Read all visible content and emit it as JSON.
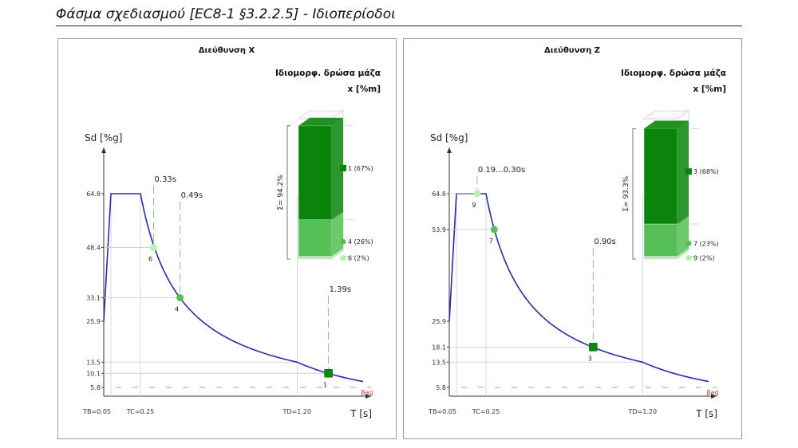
{
  "page_title": "Φάσμα σχεδιασμού [EC8-1 §3.2.2.5] - Ιδιοπερίοδοι",
  "chart_data": [
    {
      "type": "line",
      "title": "Διεύθυνση X",
      "ylabel": "Sd [%g]",
      "xlabel": "T [s]",
      "ytick_labels": [
        "64.8",
        "48.4",
        "33.1",
        "25.9",
        "13.5",
        "10.1",
        "5.8"
      ],
      "xtick_labels": [
        "TB=0.05",
        "TC=0.25",
        "TD=1.20"
      ],
      "spectrum": {
        "TB": 0.05,
        "TC": 0.25,
        "TD": 1.2,
        "S0": 25.9,
        "Splat": 64.8,
        "Tmax": 1.6
      },
      "floor": {
        "value": 5.8,
        "label": "βag"
      },
      "series": [
        {
          "values": [
            [
              0,
              25.9
            ],
            [
              0.05,
              64.8
            ],
            [
              0.25,
              64.8
            ],
            [
              0.33,
              48.4
            ],
            [
              0.49,
              33.1
            ],
            [
              1.2,
              13.5
            ],
            [
              1.39,
              10.1
            ],
            [
              1.6,
              5.8
            ]
          ]
        }
      ],
      "periods": [
        {
          "mode": "6",
          "T": 0.33,
          "Sd": 48.4,
          "period_label": "0.33s",
          "color": "#b9f2b0",
          "marker": "circle"
        },
        {
          "mode": "4",
          "T": 0.49,
          "Sd": 33.1,
          "period_label": "0.49s",
          "color": "#58c258",
          "marker": "circle"
        },
        {
          "mode": "1",
          "T": 1.39,
          "Sd": 10.1,
          "period_label": "1.39s",
          "color": "#0a8a0a",
          "marker": "square"
        }
      ],
      "mass_title": [
        "Ιδιομορφ. δρώσα μάζα",
        "x [%m]"
      ],
      "mass_sum_label": "Σ= 94.2%",
      "mass_sum": 94.2,
      "mass_segments": [
        {
          "label": "1 (67%)",
          "value": 67,
          "color": "#0a850a",
          "marker": "square"
        },
        {
          "label": "4 (26%)",
          "value": 26,
          "color": "#55bf55",
          "marker": "circle"
        },
        {
          "label": "6 (2%)",
          "value": 2,
          "color": "#b4eeaa",
          "marker": "circle"
        }
      ]
    },
    {
      "type": "line",
      "title": "Διεύθυνση Z",
      "ylabel": "Sd [%g]",
      "xlabel": "T [s]",
      "ytick_labels": [
        "64.8",
        "53.9",
        "25.9",
        "18.1",
        "13.5",
        "5.8"
      ],
      "xtick_labels": [
        "TB=0.05",
        "TC=0.25",
        "TD=1.20"
      ],
      "spectrum": {
        "TB": 0.05,
        "TC": 0.25,
        "TD": 1.2,
        "S0": 25.9,
        "Splat": 64.8,
        "Tmax": 1.6
      },
      "floor": {
        "value": 5.8,
        "label": "βag"
      },
      "series": [
        {
          "values": [
            [
              0,
              25.9
            ],
            [
              0.05,
              64.8
            ],
            [
              0.25,
              64.8
            ],
            [
              0.3,
              53.9
            ],
            [
              0.9,
              18.1
            ],
            [
              1.2,
              13.5
            ],
            [
              1.6,
              5.8
            ]
          ]
        }
      ],
      "periods": [
        {
          "mode": "9",
          "T": 0.19,
          "Sd": 64.8,
          "period_label": "0.19...0.30s",
          "color": "#b9f2b0",
          "marker": "circle"
        },
        {
          "mode": "7",
          "T": 0.3,
          "Sd": 53.9,
          "period_label": "",
          "color": "#58c258",
          "marker": "circle"
        },
        {
          "mode": "3",
          "T": 0.9,
          "Sd": 18.1,
          "period_label": "0.90s",
          "color": "#0a8a0a",
          "marker": "square"
        }
      ],
      "mass_title": [
        "Ιδιομορφ. δρώσα μάζα",
        "x [%m]"
      ],
      "mass_sum_label": "Σ= 93.3%",
      "mass_sum": 93.3,
      "mass_segments": [
        {
          "label": "3 (68%)",
          "value": 68,
          "color": "#0a850a",
          "marker": "square"
        },
        {
          "label": "7 (23%)",
          "value": 23,
          "color": "#55bf55",
          "marker": "circle"
        },
        {
          "label": "9 (2%)",
          "value": 2,
          "color": "#b4eeaa",
          "marker": "circle"
        }
      ]
    }
  ]
}
